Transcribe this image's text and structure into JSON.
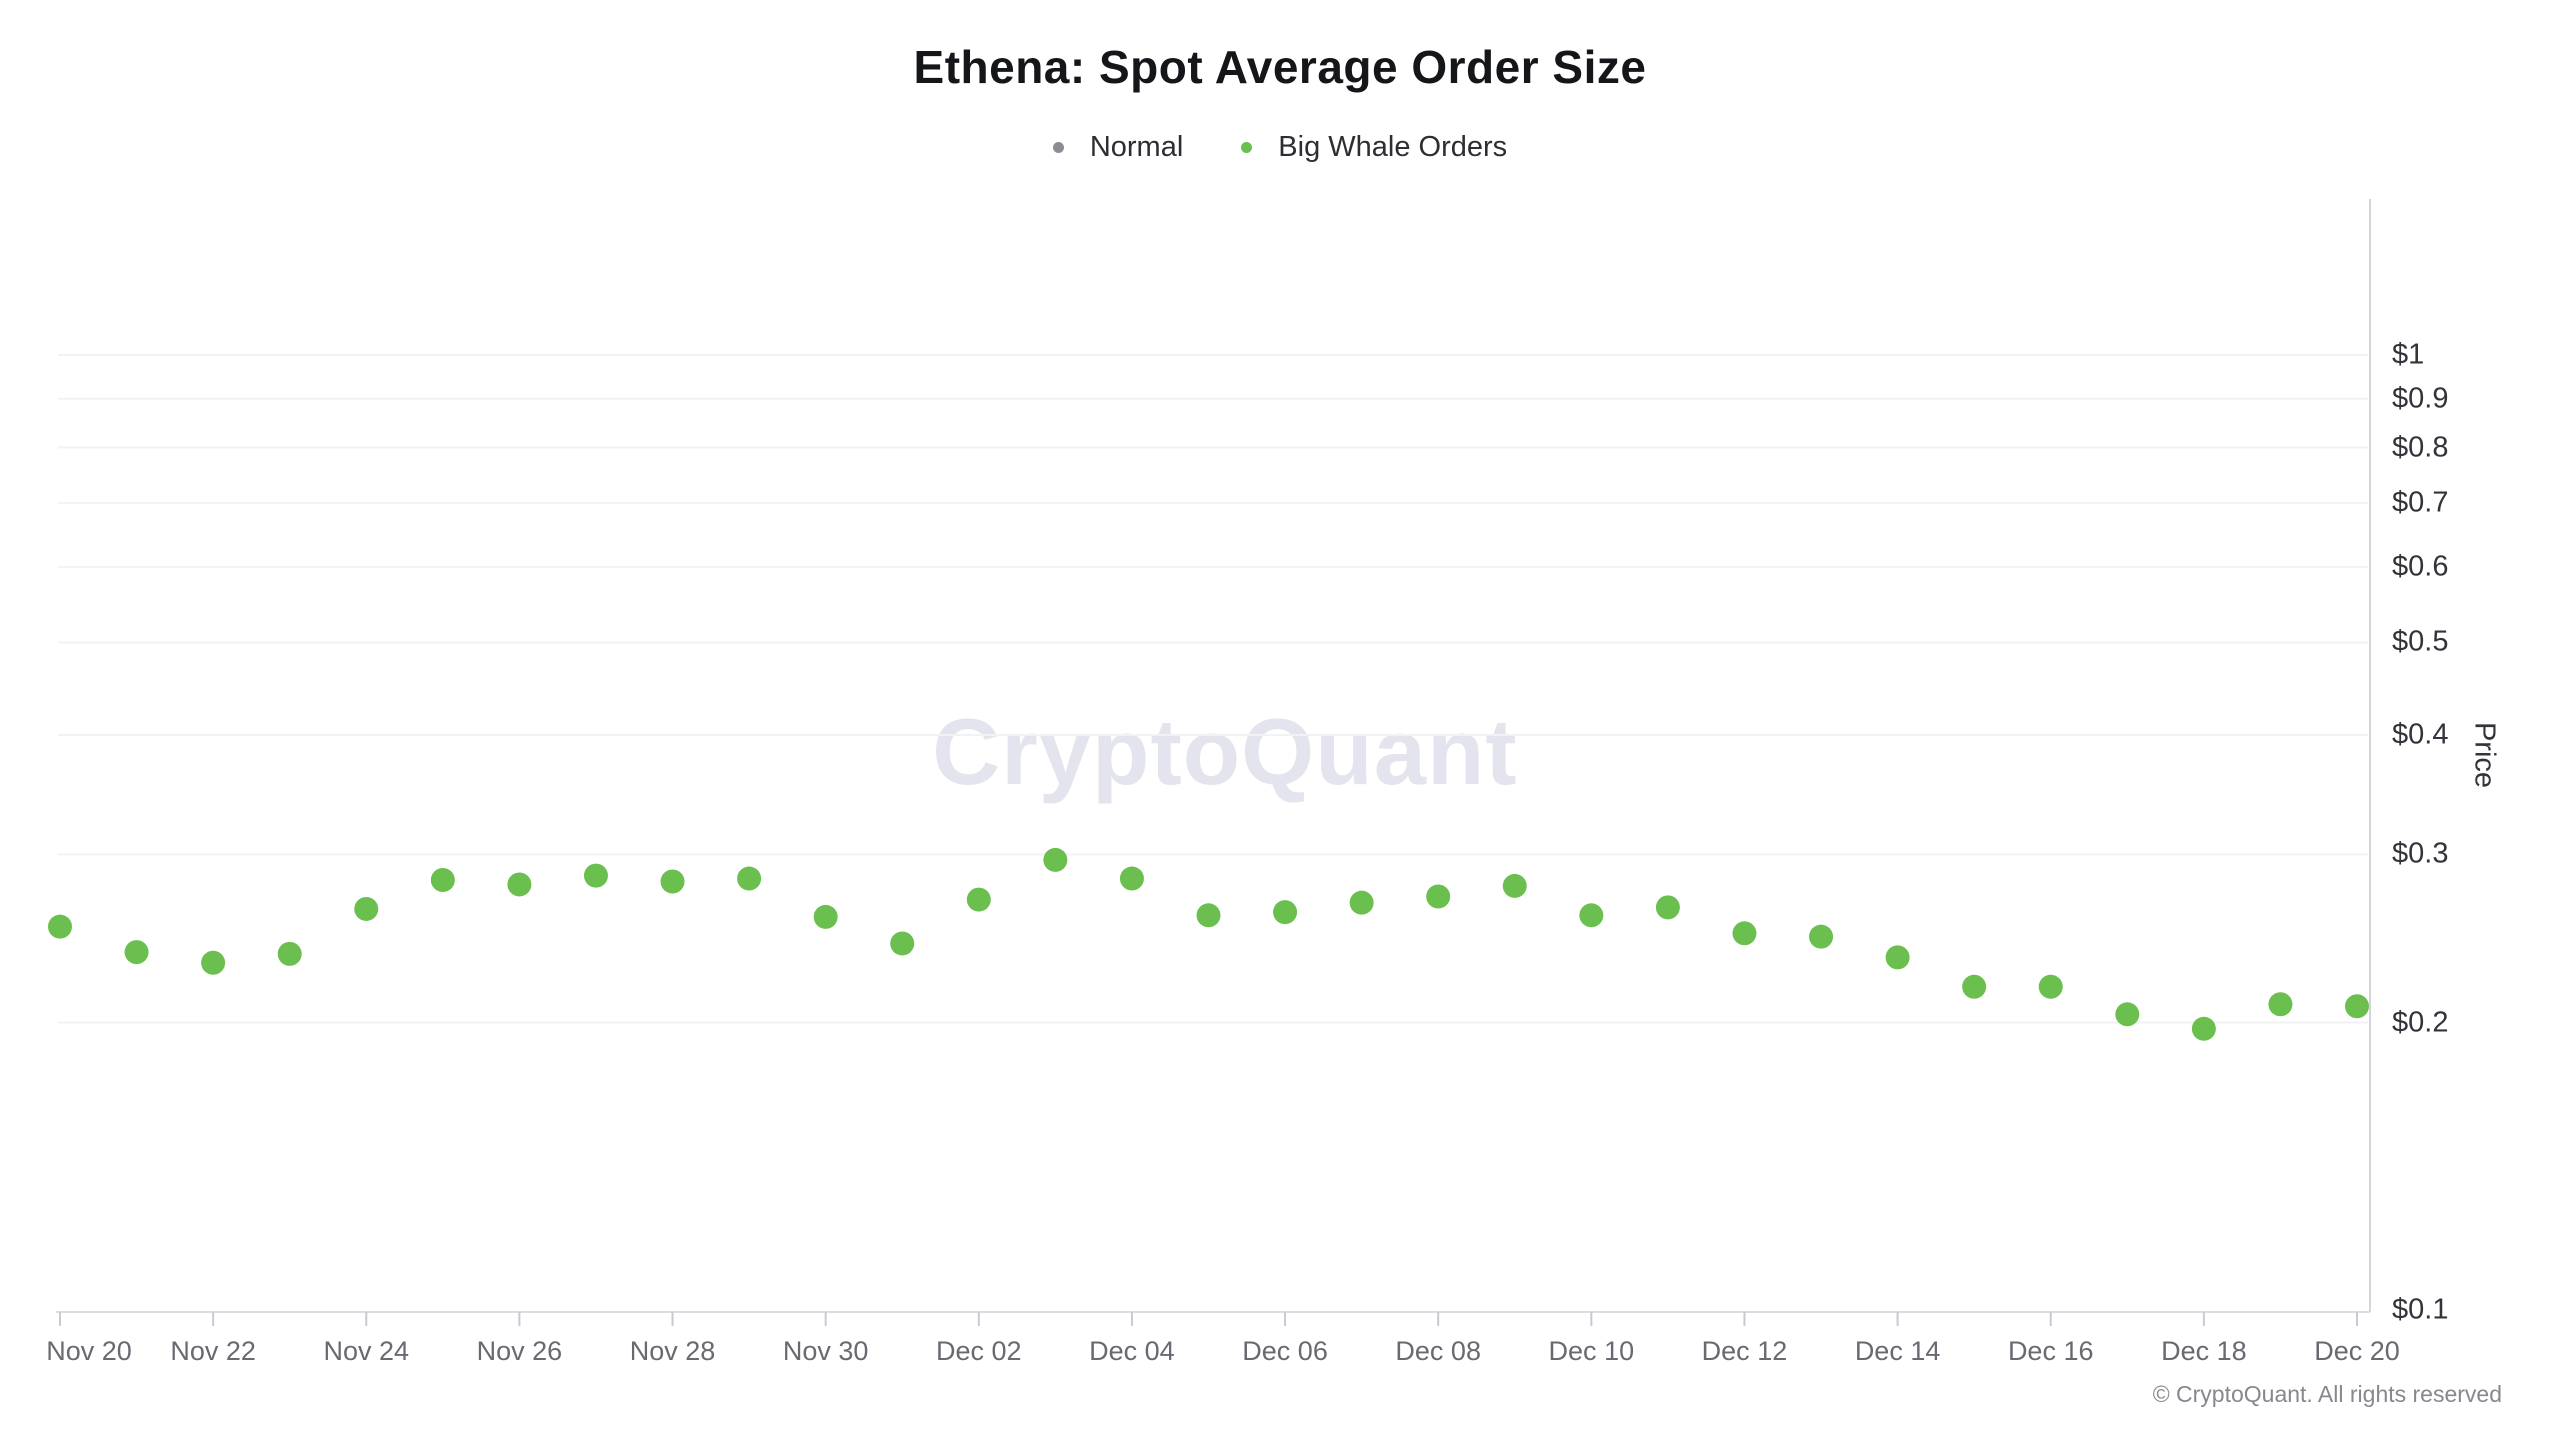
{
  "page": {
    "title": "Ethena: Spot Average Order Size"
  },
  "legend": {
    "items": [
      {
        "label": "Normal",
        "color": "#8c8c92"
      },
      {
        "label": "Big Whale Orders",
        "color": "#6abf4e"
      }
    ]
  },
  "watermark": "CryptoQuant",
  "y_axis": {
    "title": "Price"
  },
  "footer": {
    "copyright": "© CryptoQuant. All rights reserved"
  },
  "chart_data": {
    "type": "scatter",
    "title": "Ethena: Spot Average Order Size",
    "xlabel": "",
    "ylabel": "Price",
    "y_scale": "log",
    "ylim": [
      0.1,
      1.46
    ],
    "grid": true,
    "legend_position": "top",
    "point_radius_px": 12,
    "y_ticks": [
      {
        "label": "$1",
        "value": 1.0
      },
      {
        "label": "$0.9",
        "value": 0.9
      },
      {
        "label": "$0.8",
        "value": 0.8
      },
      {
        "label": "$0.7",
        "value": 0.7
      },
      {
        "label": "$0.6",
        "value": 0.6
      },
      {
        "label": "$0.5",
        "value": 0.5
      },
      {
        "label": "$0.4",
        "value": 0.4
      },
      {
        "label": "$0.3",
        "value": 0.3
      },
      {
        "label": "$0.2",
        "value": 0.2
      },
      {
        "label": "$0.1",
        "value": 0.1
      }
    ],
    "x_tick_labels": [
      "Nov 20",
      "Nov 22",
      "Nov 24",
      "Nov 26",
      "Nov 28",
      "Nov 30",
      "Dec 02",
      "Dec 04",
      "Dec 06",
      "Dec 08",
      "Dec 10",
      "Dec 12",
      "Dec 14",
      "Dec 16",
      "Dec 18",
      "Dec 20"
    ],
    "categories": [
      "Nov 20",
      "Nov 21",
      "Nov 22",
      "Nov 23",
      "Nov 24",
      "Nov 25",
      "Nov 26",
      "Nov 27",
      "Nov 28",
      "Nov 29",
      "Nov 30",
      "Dec 01",
      "Dec 02",
      "Dec 03",
      "Dec 04",
      "Dec 05",
      "Dec 06",
      "Dec 07",
      "Dec 08",
      "Dec 09",
      "Dec 10",
      "Dec 11",
      "Dec 12",
      "Dec 13",
      "Dec 14",
      "Dec 15",
      "Dec 16",
      "Dec 17",
      "Dec 18",
      "Dec 19",
      "Dec 20"
    ],
    "series": [
      {
        "name": "Normal",
        "color": "#8c8c92",
        "values": []
      },
      {
        "name": "Big Whale Orders",
        "color": "#6abf4e",
        "values": [
          0.252,
          0.237,
          0.231,
          0.236,
          0.263,
          0.282,
          0.279,
          0.285,
          0.281,
          0.283,
          0.258,
          0.242,
          0.269,
          0.296,
          0.283,
          0.259,
          0.261,
          0.267,
          0.271,
          0.278,
          0.259,
          0.264,
          0.248,
          0.246,
          0.234,
          0.218,
          0.218,
          0.204,
          0.197,
          0.209,
          0.208
        ]
      }
    ]
  }
}
